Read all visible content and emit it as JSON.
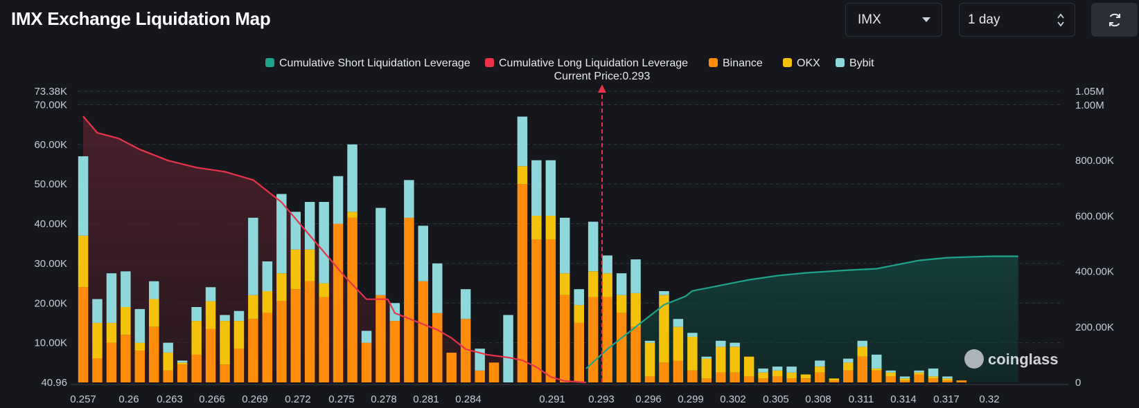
{
  "header": {
    "title": "IMX Exchange Liquidation Map"
  },
  "controls": {
    "symbol": {
      "value": "IMX",
      "icon": "chevron-down-icon"
    },
    "period": {
      "value": "1 day",
      "icon": "up-down-arrows-icon"
    },
    "refresh": {
      "icon": "refresh-icon"
    }
  },
  "watermark": "coinglass",
  "chart_data": {
    "type": "bar",
    "title": "",
    "current_price_label": "Current Price:0.293",
    "current_price": 0.293,
    "legend": [
      {
        "name": "Cumulative Short Liquidation Leverage",
        "color": "#1fa38a"
      },
      {
        "name": "Cumulative Long Liquidation Leverage",
        "color": "#e8334a"
      },
      {
        "name": "Binance",
        "color": "#ff8c0a"
      },
      {
        "name": "OKX",
        "color": "#f5c20b"
      },
      {
        "name": "Bybit",
        "color": "#8ed8dc"
      }
    ],
    "legend_position": "top-center",
    "grid": true,
    "x_ticks": [
      "0.257",
      "0.26",
      "0.263",
      "0.266",
      "0.269",
      "0.272",
      "0.275",
      "0.278",
      "0.281",
      "0.284",
      "0.291",
      "0.293",
      "0.296",
      "0.299",
      "0.302",
      "0.305",
      "0.308",
      "0.311",
      "0.314",
      "0.317",
      "0.32"
    ],
    "y_left_ticks": [
      "40.96",
      "10.00K",
      "20.00K",
      "30.00K",
      "40.00K",
      "50.00K",
      "60.00K",
      "70.00K",
      "73.38K"
    ],
    "y_left_values": [
      0,
      10000,
      20000,
      30000,
      40000,
      50000,
      60000,
      70000,
      73380
    ],
    "y_left_range": [
      0,
      73380
    ],
    "y_right_ticks": [
      "0",
      "200.00K",
      "400.00K",
      "600.00K",
      "800.00K",
      "1.00M",
      "1.05M"
    ],
    "y_right_values": [
      0,
      200000,
      400000,
      600000,
      800000,
      1000000,
      1050000
    ],
    "y_right_range": [
      0,
      1050000
    ],
    "bars": [
      {
        "binance": 24000,
        "okx": 13000,
        "bybit": 20000
      },
      {
        "binance": 6000,
        "okx": 9000,
        "bybit": 6000
      },
      {
        "binance": 10000,
        "okx": 5000,
        "bybit": 12500
      },
      {
        "binance": 12000,
        "okx": 7000,
        "bybit": 9000
      },
      {
        "binance": 8000,
        "okx": 2000,
        "bybit": 8500
      },
      {
        "binance": 14000,
        "okx": 7000,
        "bybit": 4500
      },
      {
        "binance": 3000,
        "okx": 4500,
        "bybit": 2500
      },
      {
        "binance": 4500,
        "okx": 500,
        "bybit": 500
      },
      {
        "binance": 7000,
        "okx": 8500,
        "bybit": 3500
      },
      {
        "binance": 13500,
        "okx": 7000,
        "bybit": 3500
      },
      {
        "binance": 4500,
        "okx": 11000,
        "bybit": 1500
      },
      {
        "binance": 8500,
        "okx": 7000,
        "bybit": 2500
      },
      {
        "binance": 16000,
        "okx": 6000,
        "bybit": 19500
      },
      {
        "binance": 17500,
        "okx": 5500,
        "bybit": 7500
      },
      {
        "binance": 20500,
        "okx": 7000,
        "bybit": 20000
      },
      {
        "binance": 23500,
        "okx": 10000,
        "bybit": 9500
      },
      {
        "binance": 25500,
        "okx": 8000,
        "bybit": 12000
      },
      {
        "binance": 21500,
        "okx": 3500,
        "bybit": 20500
      },
      {
        "binance": 40000,
        "okx": 0,
        "bybit": 12000
      },
      {
        "binance": 41500,
        "okx": 1500,
        "bybit": 17000
      },
      {
        "binance": 10000,
        "okx": 0,
        "bybit": 3000
      },
      {
        "binance": 22000,
        "okx": 0,
        "bybit": 22000
      },
      {
        "binance": 15500,
        "okx": 0,
        "bybit": 4500
      },
      {
        "binance": 41500,
        "okx": 0,
        "bybit": 9500
      },
      {
        "binance": 25500,
        "okx": 0,
        "bybit": 14000
      },
      {
        "binance": 17500,
        "okx": 0,
        "bybit": 12500
      },
      {
        "binance": 7500,
        "okx": 0,
        "bybit": 0
      },
      {
        "binance": 16000,
        "okx": 0,
        "bybit": 7500
      },
      {
        "binance": 3000,
        "okx": 0,
        "bybit": 5500
      },
      {
        "binance": 5000,
        "okx": 0,
        "bybit": 0
      },
      {
        "binance": 0,
        "okx": 0,
        "bybit": 17000
      },
      {
        "binance": 50000,
        "okx": 4500,
        "bybit": 12500
      },
      {
        "binance": 36000,
        "okx": 6000,
        "bybit": 14000
      },
      {
        "binance": 36000,
        "okx": 6000,
        "bybit": 14000
      },
      {
        "binance": 22000,
        "okx": 5500,
        "bybit": 14000
      },
      {
        "binance": 15000,
        "okx": 4500,
        "bybit": 4000
      },
      {
        "binance": 21500,
        "okx": 6500,
        "bybit": 12500
      },
      {
        "binance": 21500,
        "okx": 6000,
        "bybit": 4500
      },
      {
        "binance": 17500,
        "okx": 4500,
        "bybit": 5500
      },
      {
        "binance": 14000,
        "okx": 8500,
        "bybit": 8500
      },
      {
        "binance": 1500,
        "okx": 8500,
        "bybit": 500
      },
      {
        "binance": 5000,
        "okx": 17000,
        "bybit": 1000
      },
      {
        "binance": 5500,
        "okx": 8500,
        "bybit": 2000
      },
      {
        "binance": 3000,
        "okx": 8500,
        "bybit": 1000
      },
      {
        "binance": 1000,
        "okx": 5000,
        "bybit": 500
      },
      {
        "binance": 2500,
        "okx": 6500,
        "bybit": 1500
      },
      {
        "binance": 2500,
        "okx": 6500,
        "bybit": 1000
      },
      {
        "binance": 1500,
        "okx": 5000,
        "bybit": 0
      },
      {
        "binance": 1000,
        "okx": 1500,
        "bybit": 1000
      },
      {
        "binance": 1500,
        "okx": 1500,
        "bybit": 1000
      },
      {
        "binance": 1000,
        "okx": 1500,
        "bybit": 1500
      },
      {
        "binance": 1000,
        "okx": 1000,
        "bybit": 0
      },
      {
        "binance": 2500,
        "okx": 1500,
        "bybit": 1500
      },
      {
        "binance": 500,
        "okx": 500,
        "bybit": 0
      },
      {
        "binance": 3000,
        "okx": 2000,
        "bybit": 1000
      },
      {
        "binance": 6500,
        "okx": 2500,
        "bybit": 1500
      },
      {
        "binance": 3000,
        "okx": 500,
        "bybit": 3500
      },
      {
        "binance": 1500,
        "okx": 1000,
        "bybit": 500
      },
      {
        "binance": 500,
        "okx": 500,
        "bybit": 500
      },
      {
        "binance": 2000,
        "okx": 500,
        "bybit": 500
      },
      {
        "binance": 1000,
        "okx": 500,
        "bybit": 2000
      },
      {
        "binance": 500,
        "okx": 500,
        "bybit": 500
      },
      {
        "binance": 500,
        "okx": 0,
        "bybit": 0
      }
    ],
    "cumulative_long": [
      [
        0.257,
        960000
      ],
      [
        0.258,
        900000
      ],
      [
        0.2595,
        880000
      ],
      [
        0.261,
        840000
      ],
      [
        0.263,
        800000
      ],
      [
        0.265,
        775000
      ],
      [
        0.267,
        760000
      ],
      [
        0.269,
        730000
      ],
      [
        0.27,
        690000
      ],
      [
        0.271,
        650000
      ],
      [
        0.2725,
        560000
      ],
      [
        0.274,
        470000
      ],
      [
        0.2755,
        380000
      ],
      [
        0.277,
        300000
      ],
      [
        0.2785,
        300000
      ],
      [
        0.279,
        250000
      ],
      [
        0.2805,
        220000
      ],
      [
        0.282,
        190000
      ],
      [
        0.283,
        160000
      ],
      [
        0.284,
        120000
      ],
      [
        0.2855,
        100000
      ],
      [
        0.287,
        90000
      ],
      [
        0.288,
        80000
      ],
      [
        0.289,
        55000
      ],
      [
        0.29,
        20000
      ],
      [
        0.291,
        5000
      ],
      [
        0.2925,
        0
      ]
    ],
    "cumulative_short": [
      [
        0.2925,
        50000
      ],
      [
        0.294,
        120000
      ],
      [
        0.295,
        160000
      ],
      [
        0.2965,
        220000
      ],
      [
        0.298,
        280000
      ],
      [
        0.2995,
        310000
      ],
      [
        0.3,
        330000
      ],
      [
        0.302,
        350000
      ],
      [
        0.304,
        370000
      ],
      [
        0.306,
        385000
      ],
      [
        0.308,
        395000
      ],
      [
        0.311,
        405000
      ],
      [
        0.313,
        410000
      ],
      [
        0.316,
        440000
      ],
      [
        0.318,
        450000
      ],
      [
        0.321,
        455000
      ],
      [
        0.323,
        455000
      ]
    ]
  }
}
